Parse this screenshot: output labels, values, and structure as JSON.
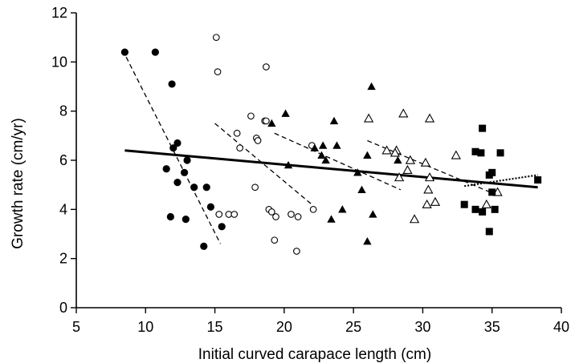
{
  "chart_data": {
    "type": "scatter",
    "title": "",
    "xlabel": "Initial curved carapace length (cm)",
    "ylabel": "Growth rate (cm/yr)",
    "xlim": [
      5,
      40
    ],
    "ylim": [
      0,
      12
    ],
    "xticks": [
      "5",
      "10",
      "15",
      "20",
      "25",
      "30",
      "35",
      "40"
    ],
    "yticks": [
      "0",
      "2",
      "4",
      "6",
      "8",
      "10",
      "12"
    ],
    "grid": false,
    "legend": "none",
    "color": "#000000",
    "series": [
      {
        "marker": "filled-circle",
        "points": [
          [
            8.5,
            10.4
          ],
          [
            10.7,
            10.4
          ],
          [
            11.9,
            9.1
          ],
          [
            12.0,
            6.5
          ],
          [
            12.3,
            6.7
          ],
          [
            11.5,
            5.65
          ],
          [
            12.8,
            5.5
          ],
          [
            13.0,
            6.0
          ],
          [
            12.3,
            5.1
          ],
          [
            13.5,
            4.9
          ],
          [
            14.4,
            4.9
          ],
          [
            11.8,
            3.7
          ],
          [
            12.9,
            3.6
          ],
          [
            14.7,
            4.1
          ],
          [
            15.5,
            3.3
          ],
          [
            14.2,
            2.5
          ]
        ]
      },
      {
        "marker": "open-circle",
        "points": [
          [
            15.1,
            11.0
          ],
          [
            15.2,
            9.6
          ],
          [
            18.7,
            9.8
          ],
          [
            17.6,
            7.8
          ],
          [
            18.6,
            7.6
          ],
          [
            18.7,
            7.6
          ],
          [
            18.0,
            6.9
          ],
          [
            18.1,
            6.8
          ],
          [
            16.6,
            7.1
          ],
          [
            16.8,
            6.5
          ],
          [
            22.0,
            6.6
          ],
          [
            17.9,
            4.9
          ],
          [
            15.3,
            3.8
          ],
          [
            16.0,
            3.8
          ],
          [
            16.4,
            3.8
          ],
          [
            18.9,
            4.0
          ],
          [
            19.1,
            3.9
          ],
          [
            19.4,
            3.7
          ],
          [
            20.5,
            3.8
          ],
          [
            21.0,
            3.7
          ],
          [
            22.1,
            4.0
          ],
          [
            19.3,
            2.75
          ],
          [
            20.9,
            2.3
          ]
        ]
      },
      {
        "marker": "filled-triangle",
        "points": [
          [
            20.1,
            7.9
          ],
          [
            19.1,
            7.5
          ],
          [
            23.6,
            7.6
          ],
          [
            26.3,
            9.0
          ],
          [
            22.2,
            6.5
          ],
          [
            22.7,
            6.2
          ],
          [
            22.8,
            6.6
          ],
          [
            23.0,
            6.0
          ],
          [
            23.8,
            6.6
          ],
          [
            20.3,
            5.8
          ],
          [
            25.3,
            5.5
          ],
          [
            25.6,
            4.8
          ],
          [
            26.0,
            6.2
          ],
          [
            26.4,
            3.8
          ],
          [
            24.2,
            4.0
          ],
          [
            23.4,
            3.6
          ],
          [
            26.0,
            2.7
          ],
          [
            28.2,
            6.0
          ]
        ]
      },
      {
        "marker": "open-triangle",
        "points": [
          [
            26.1,
            7.7
          ],
          [
            28.6,
            7.9
          ],
          [
            30.5,
            7.7
          ],
          [
            27.4,
            6.4
          ],
          [
            28.1,
            6.4
          ],
          [
            28.0,
            6.3
          ],
          [
            29.1,
            6.0
          ],
          [
            28.9,
            5.6
          ],
          [
            30.2,
            5.9
          ],
          [
            28.3,
            5.3
          ],
          [
            30.5,
            5.3
          ],
          [
            30.4,
            4.8
          ],
          [
            30.3,
            4.2
          ],
          [
            30.9,
            4.3
          ],
          [
            29.4,
            3.6
          ],
          [
            32.4,
            6.2
          ],
          [
            34.6,
            4.2
          ],
          [
            35.4,
            4.7
          ]
        ]
      },
      {
        "marker": "filled-square",
        "points": [
          [
            34.3,
            7.3
          ],
          [
            33.8,
            6.35
          ],
          [
            34.2,
            6.3
          ],
          [
            35.6,
            6.3
          ],
          [
            35.0,
            5.5
          ],
          [
            34.8,
            5.4
          ],
          [
            33.0,
            4.2
          ],
          [
            33.8,
            4.0
          ],
          [
            34.3,
            3.9
          ],
          [
            35.0,
            4.7
          ],
          [
            35.2,
            4.0
          ],
          [
            34.8,
            3.1
          ],
          [
            38.3,
            5.2
          ]
        ]
      }
    ],
    "fit_lines": [
      {
        "style": "solid",
        "x": [
          8.5,
          38.3
        ],
        "y": [
          6.4,
          4.9
        ]
      },
      {
        "style": "dashed",
        "x": [
          8.6,
          15.4
        ],
        "y": [
          10.2,
          2.6
        ]
      },
      {
        "style": "dashed",
        "x": [
          15.0,
          22.0
        ],
        "y": [
          7.5,
          4.2
        ]
      },
      {
        "style": "dashed",
        "x": [
          19.3,
          28.4
        ],
        "y": [
          7.1,
          4.8
        ]
      },
      {
        "style": "dashed",
        "x": [
          26.0,
          35.3
        ],
        "y": [
          6.8,
          4.6
        ]
      },
      {
        "style": "dotted",
        "x": [
          33.0,
          38.3
        ],
        "y": [
          4.95,
          5.4
        ]
      }
    ]
  }
}
